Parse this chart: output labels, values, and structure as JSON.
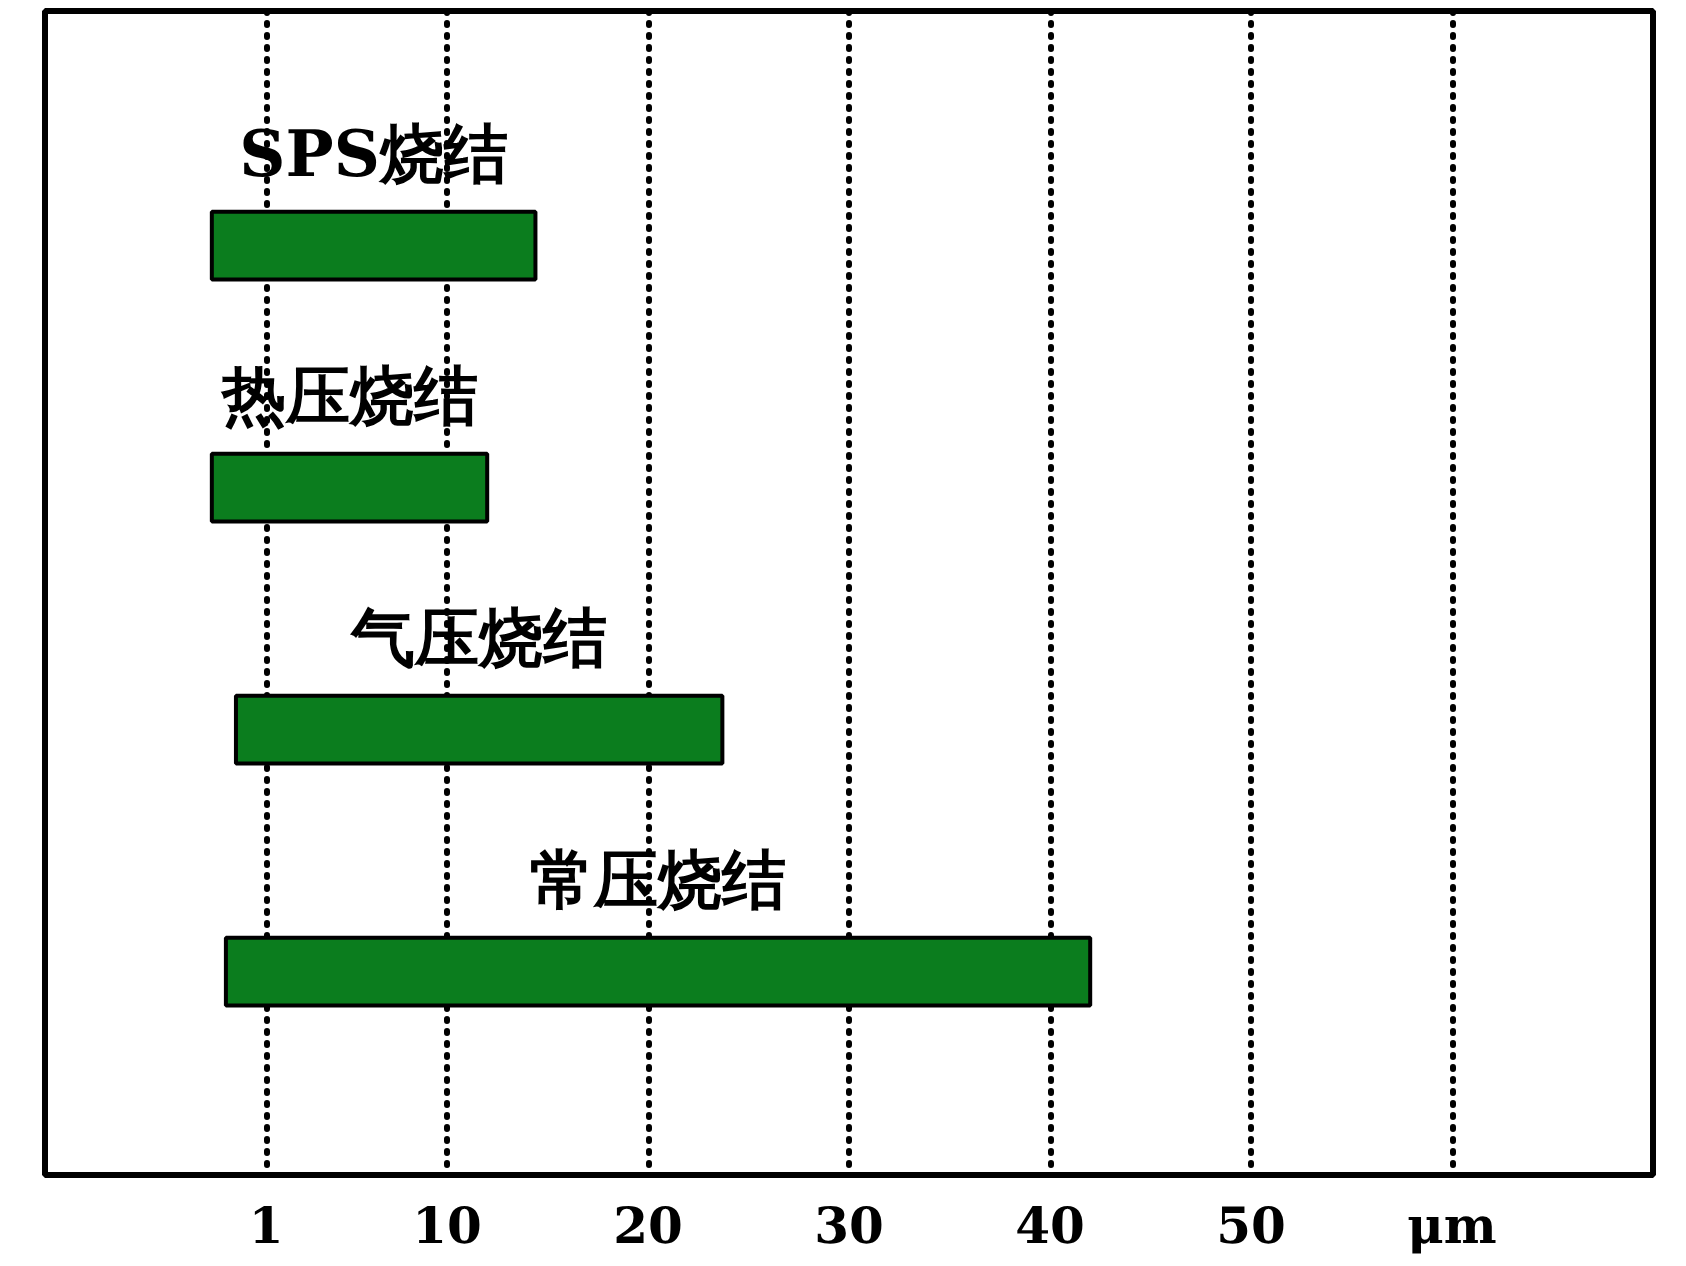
{
  "chart_data": {
    "type": "bar",
    "orientation": "horizontal",
    "categories": [
      "SPS烧结",
      "热压烧结",
      "气压烧结",
      "常压烧结"
    ],
    "base": [
      -1.7,
      -1.7,
      -0.5,
      -1
    ],
    "values": [
      16.1,
      13.7,
      24.2,
      43
    ],
    "color": "#0b7d1e",
    "xlim": [
      -10,
      70
    ],
    "xticks": [
      1,
      10,
      20,
      30,
      40,
      50,
      {
        "value": 60,
        "label": "μm"
      }
    ],
    "grid": "x",
    "tick_labels": "x"
  }
}
